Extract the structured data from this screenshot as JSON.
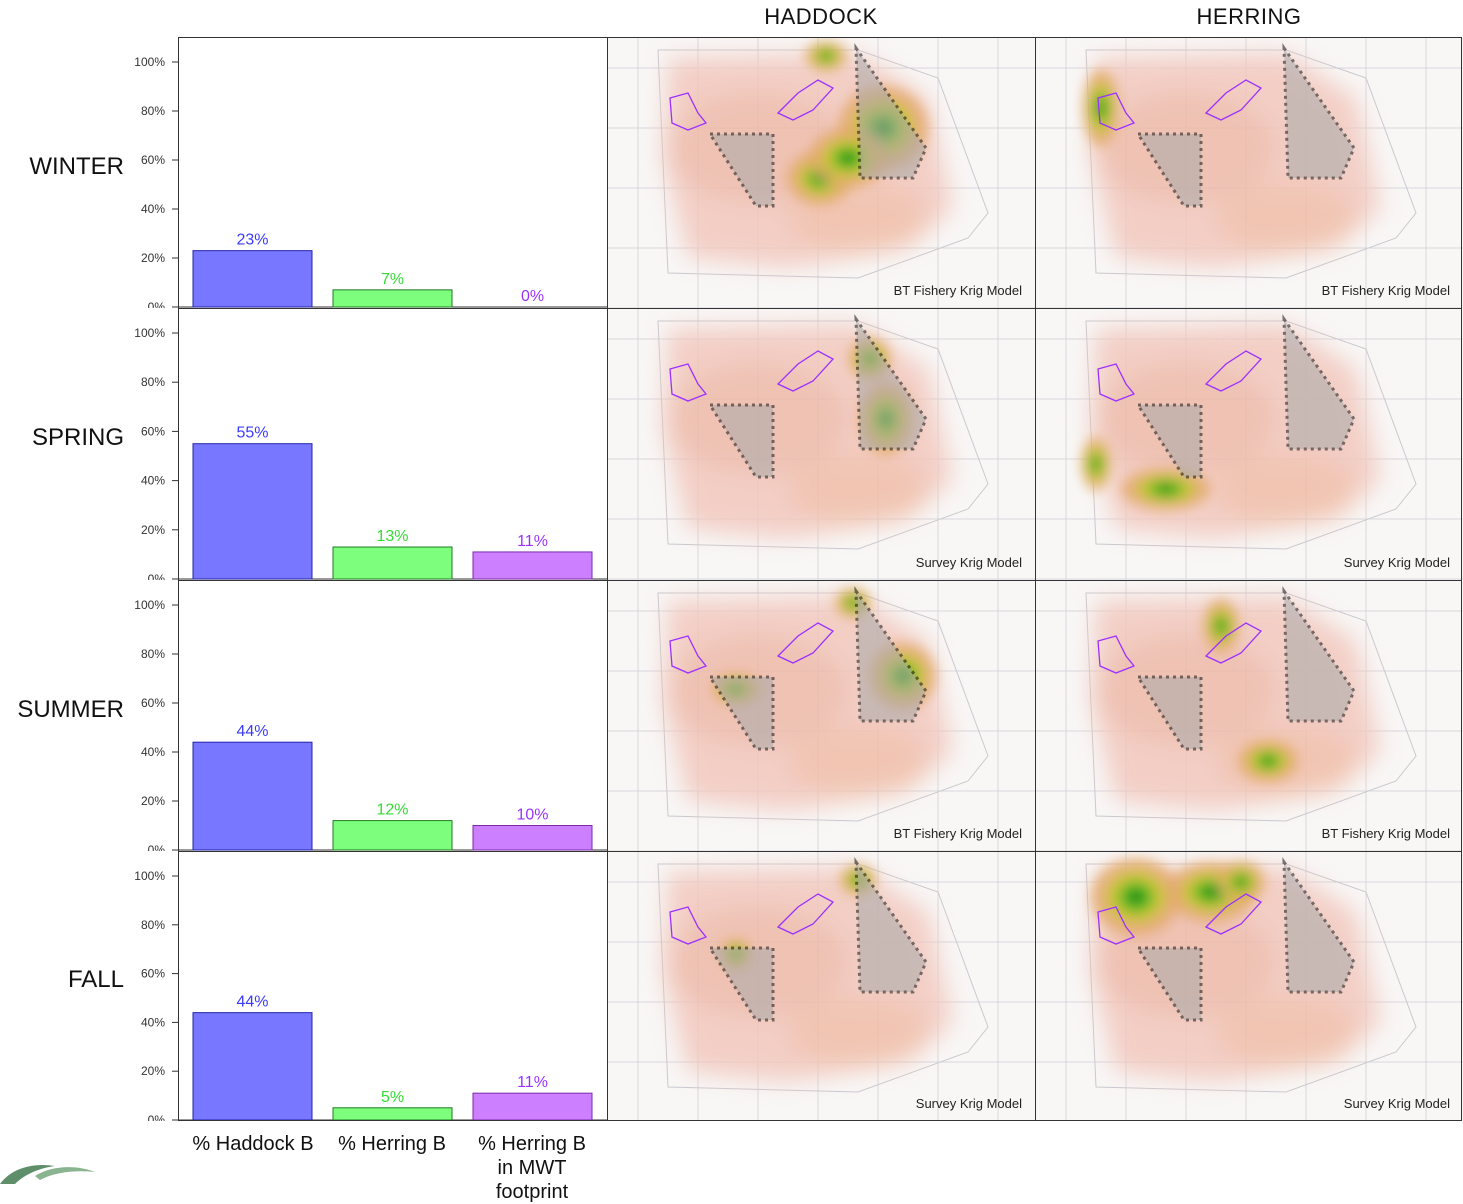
{
  "column_headers": [
    "HADDOCK",
    "HERRING"
  ],
  "categories": [
    "% Haddock B",
    "% Herring B",
    "% Herring B in MWT footprint"
  ],
  "category_lines": [
    [
      "% Haddock B"
    ],
    [
      "% Herring B"
    ],
    [
      "% Herring B",
      "in MWT footprint"
    ]
  ],
  "colors": {
    "haddock": "#7777ff",
    "herring": "#7dff7d",
    "mwt": "#cc80ff",
    "haddock_label": "#3b3bff",
    "herring_label": "#33dd33",
    "mwt_label": "#9933ff"
  },
  "seasons": [
    {
      "name": "WINTER",
      "map_captions": [
        "BT Fishery Krig Model",
        "BT Fishery Krig Model"
      ]
    },
    {
      "name": "SPRING",
      "map_captions": [
        "Survey Krig Model",
        "Survey Krig Model"
      ]
    },
    {
      "name": "SUMMER",
      "map_captions": [
        "BT Fishery Krig Model",
        "BT Fishery Krig Model"
      ]
    },
    {
      "name": "FALL",
      "map_captions": [
        "Survey Krig Model",
        "Survey Krig Model"
      ]
    }
  ],
  "chart_data": [
    {
      "type": "bar",
      "title": "WINTER",
      "categories": [
        "% Haddock B",
        "% Herring B",
        "% Herring B in MWT footprint"
      ],
      "values": [
        23,
        7,
        0
      ],
      "data_labels": [
        "23%",
        "7%",
        "0%"
      ],
      "ylim": [
        0,
        100
      ],
      "yticks": [
        "0%",
        "20%",
        "40%",
        "60%",
        "80%",
        "100%"
      ]
    },
    {
      "type": "bar",
      "title": "SPRING",
      "categories": [
        "% Haddock B",
        "% Herring B",
        "% Herring B in MWT footprint"
      ],
      "values": [
        55,
        13,
        11
      ],
      "data_labels": [
        "55%",
        "13%",
        "11%"
      ],
      "ylim": [
        0,
        100
      ],
      "yticks": [
        "0%",
        "20%",
        "40%",
        "60%",
        "80%",
        "100%"
      ]
    },
    {
      "type": "bar",
      "title": "SUMMER",
      "categories": [
        "% Haddock B",
        "% Herring B",
        "% Herring B in MWT footprint"
      ],
      "values": [
        44,
        12,
        10
      ],
      "data_labels": [
        "44%",
        "12%",
        "10%"
      ],
      "ylim": [
        0,
        100
      ],
      "yticks": [
        "0%",
        "20%",
        "40%",
        "60%",
        "80%",
        "100%"
      ]
    },
    {
      "type": "bar",
      "title": "FALL",
      "categories": [
        "% Haddock B",
        "% Herring B",
        "% Herring B in MWT footprint"
      ],
      "values": [
        44,
        5,
        11
      ],
      "data_labels": [
        "44%",
        "5%",
        "11%"
      ],
      "ylim": [
        0,
        100
      ],
      "yticks": [
        "0%",
        "20%",
        "40%",
        "60%",
        "80%",
        "100%"
      ]
    }
  ]
}
